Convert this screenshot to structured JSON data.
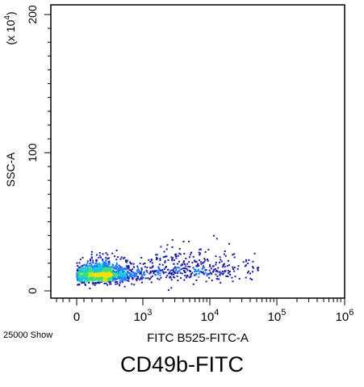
{
  "caption": "CD49b-FITC",
  "footer_note": "25000 Show",
  "chart_data": {
    "type": "scatter",
    "plot_style": "flow-cytometry density dot plot",
    "xlabel": "FITC B525-FITC-A",
    "ylabel": "SSC-A",
    "y_multiplier_label": "(x 10",
    "y_multiplier_exponent": "4",
    "y_multiplier_close": ")",
    "x_scale": "biexponential",
    "x_ticks": [
      {
        "label": "0",
        "exp": ""
      },
      {
        "label": "10",
        "exp": "3"
      },
      {
        "label": "10",
        "exp": "4"
      },
      {
        "label": "10",
        "exp": "5"
      },
      {
        "label": "10",
        "exp": "6"
      }
    ],
    "y_scale": "linear",
    "y_ticks": [
      "0",
      "100",
      "200"
    ],
    "ylim": [
      0,
      200
    ],
    "event_count": 25000,
    "density_colors": [
      "#1a1aa8",
      "#1c7dff",
      "#19c8d8",
      "#3be07a",
      "#c8e81e",
      "#ffe000"
    ],
    "populations": [
      {
        "name": "",
        "x_log_center": 2.25,
        "x_spread": 0.35,
        "y_center": 12,
        "y_spread": 6,
        "fraction": 0.78
      },
      {
        "name": "",
        "x_log_center": 3.6,
        "x_spread": 0.55,
        "y_center": 16,
        "y_spread": 9,
        "fraction": 0.22
      }
    ]
  }
}
